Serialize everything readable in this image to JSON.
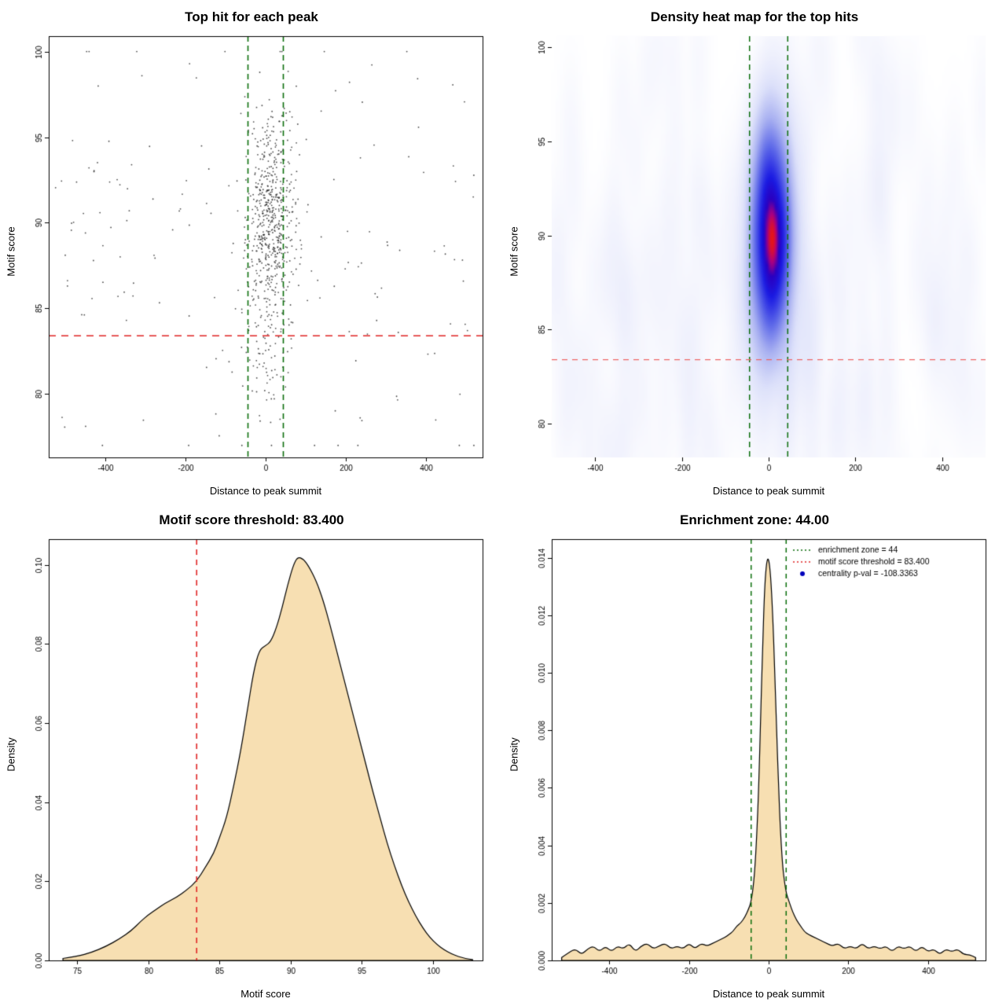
{
  "page": {
    "background": "#ffffff"
  },
  "colors": {
    "red": "#e02424",
    "red_light": "#ee6666",
    "green": "#0b6e0b",
    "wheat": "#f7dfb2",
    "point": "#222222",
    "legend_blue": "#0000bb",
    "axis": "#000000"
  },
  "chart_data": [
    {
      "type": "scatter",
      "title": "Top hit for each peak",
      "xlabel": "Distance to peak summit",
      "ylabel": "Motif score",
      "xlim": [
        -540,
        540
      ],
      "ylim": [
        76.3,
        100.9
      ],
      "xticks": [
        -400,
        -200,
        0,
        200,
        400
      ],
      "xtick_labels": [
        "-400",
        "-200",
        "0",
        "200",
        "400"
      ],
      "yticks": [
        80,
        85,
        90,
        95,
        100
      ],
      "ytick_labels": [
        "80",
        "85",
        "90",
        "95",
        "100"
      ],
      "box": true,
      "vlines": [
        {
          "x": -44,
          "color": "green",
          "dash": [
            7,
            5
          ],
          "width": 1.6
        },
        {
          "x": 44,
          "color": "green",
          "dash": [
            7,
            5
          ],
          "width": 1.6
        }
      ],
      "hlines": [
        {
          "y": 83.4,
          "color": "red",
          "dash": [
            9,
            7
          ],
          "width": 1.6
        }
      ],
      "points_spec": {
        "seed": 42,
        "point_alpha": 0.8,
        "radius": 0.9,
        "y_clip": [
          77,
          100
        ],
        "x_clip": [
          -535,
          535
        ],
        "clusters": [
          {
            "n": 430,
            "x_mean": 14,
            "x_sd": 26,
            "y_mean": 90.8,
            "y_sd": 2.7
          },
          {
            "n": 150,
            "x_mean": 10,
            "x_sd": 42,
            "y_mean": 88.6,
            "y_sd": 4.2
          },
          {
            "n": 60,
            "x_mean": 4,
            "x_sd": 30,
            "y_mean": 82.5,
            "y_sd": 2.4
          },
          {
            "n": 175,
            "x_uniform": [
              -530,
              530
            ],
            "y_mean": 88.2,
            "y_sd": 6.4
          }
        ]
      }
    },
    {
      "type": "heatmap",
      "title": "Density heat map for the top hits",
      "xlabel": "Distance to peak summit",
      "ylabel": "Motif score",
      "xlim": [
        -500,
        500
      ],
      "ylim": [
        78.2,
        100.6
      ],
      "xticks": [
        -400,
        -200,
        0,
        200,
        400
      ],
      "xtick_labels": [
        "-400",
        "-200",
        "0",
        "200",
        "400"
      ],
      "yticks": [
        80,
        85,
        90,
        95,
        100
      ],
      "ytick_labels": [
        "80",
        "85",
        "90",
        "95",
        "100"
      ],
      "box": false,
      "vlines": [
        {
          "x": -44,
          "color": "green",
          "dash": [
            7,
            5
          ],
          "width": 1.5
        },
        {
          "x": 44,
          "color": "green",
          "dash": [
            7,
            5
          ],
          "width": 1.5
        }
      ],
      "hlines": [
        {
          "y": 83.4,
          "color": "red_light",
          "dash": [
            7,
            6
          ],
          "width": 1.2
        }
      ],
      "heat_spec": {
        "seed": 7,
        "grid": [
          150,
          150
        ],
        "bw": [
          15,
          2.1
        ],
        "gamma": 0.6,
        "clusters": [
          {
            "n": 420,
            "x_mean": 5,
            "x_sd": 22,
            "y_mean": 90.6,
            "y_sd": 2.6
          },
          {
            "n": 130,
            "x_mean": 5,
            "x_sd": 34,
            "y_mean": 88.8,
            "y_sd": 3.8
          },
          {
            "n": 120,
            "x_uniform": [
              -500,
              500
            ],
            "y_mean": 88,
            "y_sd": 6.2
          },
          {
            "n": 30,
            "x_uniform": [
              -500,
              500
            ],
            "y_mean": 82,
            "y_sd": 3
          }
        ],
        "colormap": [
          [
            0,
            "#ffffff"
          ],
          [
            0.07,
            "#f3f4fd"
          ],
          [
            0.2,
            "#dde1fa"
          ],
          [
            0.38,
            "#a9b1f1"
          ],
          [
            0.58,
            "#5b66e8"
          ],
          [
            0.78,
            "#1a1ae2"
          ],
          [
            0.9,
            "#2a00c0"
          ],
          [
            0.96,
            "#aa0080"
          ],
          [
            1,
            "#e61616"
          ]
        ]
      }
    },
    {
      "type": "area",
      "title": "Motif score threshold: 83.400",
      "xlabel": "Motif score",
      "ylabel": "Density",
      "xlim": [
        73,
        103.5
      ],
      "ylim": [
        0,
        0.1065
      ],
      "xticks": [
        75,
        80,
        85,
        90,
        95,
        100
      ],
      "xtick_labels": [
        "75",
        "80",
        "85",
        "90",
        "95",
        "100"
      ],
      "yticks": [
        0,
        0.02,
        0.04,
        0.06,
        0.08,
        0.1
      ],
      "ytick_labels": [
        "0.00",
        "0.02",
        "0.04",
        "0.06",
        "0.08",
        "0.10"
      ],
      "box": true,
      "vlines": [
        {
          "x": 83.4,
          "color": "red",
          "dash": [
            7,
            6
          ],
          "width": 1.6
        }
      ],
      "hlines": [],
      "fill": "wheat",
      "curve": [
        [
          74,
          0.0005
        ],
        [
          75,
          0.001
        ],
        [
          76,
          0.002
        ],
        [
          77,
          0.0035
        ],
        [
          78,
          0.0055
        ],
        [
          78.8,
          0.0075
        ],
        [
          79.5,
          0.01
        ],
        [
          80,
          0.0115
        ],
        [
          80.6,
          0.013
        ],
        [
          81.2,
          0.0145
        ],
        [
          82,
          0.016
        ],
        [
          82.7,
          0.0178
        ],
        [
          83.4,
          0.02
        ],
        [
          84,
          0.0235
        ],
        [
          84.6,
          0.027
        ],
        [
          85,
          0.031
        ],
        [
          85.5,
          0.036
        ],
        [
          86,
          0.044
        ],
        [
          86.5,
          0.053
        ],
        [
          87,
          0.064
        ],
        [
          87.4,
          0.073
        ],
        [
          87.8,
          0.0785
        ],
        [
          88.2,
          0.0795
        ],
        [
          88.6,
          0.0805
        ],
        [
          89,
          0.084
        ],
        [
          89.4,
          0.089
        ],
        [
          89.8,
          0.095
        ],
        [
          90.2,
          0.1
        ],
        [
          90.5,
          0.102
        ],
        [
          90.9,
          0.1015
        ],
        [
          91.3,
          0.0995
        ],
        [
          91.8,
          0.096
        ],
        [
          92.3,
          0.091
        ],
        [
          92.8,
          0.0845
        ],
        [
          93.3,
          0.0775
        ],
        [
          93.8,
          0.0705
        ],
        [
          94.3,
          0.0635
        ],
        [
          94.8,
          0.0565
        ],
        [
          95.3,
          0.0495
        ],
        [
          95.8,
          0.0425
        ],
        [
          96.3,
          0.036
        ],
        [
          96.8,
          0.0295
        ],
        [
          97.3,
          0.024
        ],
        [
          97.8,
          0.019
        ],
        [
          98.3,
          0.0148
        ],
        [
          98.8,
          0.0112
        ],
        [
          99.3,
          0.0082
        ],
        [
          99.8,
          0.0058
        ],
        [
          100.3,
          0.004
        ],
        [
          100.8,
          0.0027
        ],
        [
          101.3,
          0.0017
        ],
        [
          101.8,
          0.001
        ],
        [
          102.3,
          0.0005
        ],
        [
          102.8,
          0.0002
        ]
      ]
    },
    {
      "type": "area",
      "title": "Enrichment zone: 44.00",
      "xlabel": "Distance to peak summit",
      "ylabel": "Density",
      "xlim": [
        -545,
        545
      ],
      "ylim": [
        0,
        0.01465
      ],
      "xticks": [
        -400,
        -200,
        0,
        200,
        400
      ],
      "xtick_labels": [
        "-400",
        "-200",
        "0",
        "200",
        "400"
      ],
      "yticks": [
        0,
        0.002,
        0.004,
        0.006,
        0.008,
        0.01,
        0.012,
        0.014
      ],
      "ytick_labels": [
        "0.000",
        "0.002",
        "0.004",
        "0.006",
        "0.008",
        "0.010",
        "0.012",
        "0.014"
      ],
      "box": true,
      "vlines": [
        {
          "x": -44,
          "color": "green",
          "dash": [
            6,
            5
          ],
          "width": 1.5
        },
        {
          "x": 44,
          "color": "green",
          "dash": [
            6,
            5
          ],
          "width": 1.5
        }
      ],
      "hlines": [],
      "fill": "wheat",
      "curve": [
        [
          -520,
          0.0001
        ],
        [
          -500,
          0.0003
        ],
        [
          -485,
          0.0004
        ],
        [
          -470,
          0.0002
        ],
        [
          -455,
          0.0004
        ],
        [
          -440,
          0.0005
        ],
        [
          -425,
          0.0003
        ],
        [
          -410,
          0.0005
        ],
        [
          -395,
          0.0003
        ],
        [
          -380,
          0.0005
        ],
        [
          -365,
          0.0004
        ],
        [
          -350,
          0.0006
        ],
        [
          -335,
          0.0003
        ],
        [
          -320,
          0.0005
        ],
        [
          -305,
          0.0006
        ],
        [
          -290,
          0.0004
        ],
        [
          -275,
          0.0005
        ],
        [
          -260,
          0.0006
        ],
        [
          -245,
          0.0004
        ],
        [
          -230,
          0.0005
        ],
        [
          -215,
          0.0004
        ],
        [
          -200,
          0.0006
        ],
        [
          -185,
          0.0004
        ],
        [
          -170,
          0.0006
        ],
        [
          -155,
          0.0005
        ],
        [
          -140,
          0.0006
        ],
        [
          -125,
          0.0007
        ],
        [
          -110,
          0.0008
        ],
        [
          -100,
          0.0009
        ],
        [
          -90,
          0.001
        ],
        [
          -80,
          0.0012
        ],
        [
          -70,
          0.0013
        ],
        [
          -60,
          0.0015
        ],
        [
          -50,
          0.0018
        ],
        [
          -45,
          0.002
        ],
        [
          -40,
          0.0024
        ],
        [
          -35,
          0.0031
        ],
        [
          -30,
          0.0043
        ],
        [
          -25,
          0.006
        ],
        [
          -20,
          0.0085
        ],
        [
          -15,
          0.011
        ],
        [
          -10,
          0.013
        ],
        [
          -5,
          0.0139
        ],
        [
          0,
          0.014
        ],
        [
          5,
          0.0134
        ],
        [
          10,
          0.0121
        ],
        [
          15,
          0.0102
        ],
        [
          20,
          0.008
        ],
        [
          25,
          0.006
        ],
        [
          30,
          0.0044
        ],
        [
          35,
          0.0033
        ],
        [
          40,
          0.0027
        ],
        [
          45,
          0.0023
        ],
        [
          50,
          0.0021
        ],
        [
          55,
          0.0019
        ],
        [
          60,
          0.0017
        ],
        [
          70,
          0.0014
        ],
        [
          80,
          0.0012
        ],
        [
          90,
          0.001
        ],
        [
          100,
          0.0009
        ],
        [
          115,
          0.0008
        ],
        [
          130,
          0.0007
        ],
        [
          145,
          0.0006
        ],
        [
          160,
          0.0005
        ],
        [
          175,
          0.0006
        ],
        [
          190,
          0.0004
        ],
        [
          205,
          0.0005
        ],
        [
          220,
          0.0004
        ],
        [
          235,
          0.0006
        ],
        [
          250,
          0.0004
        ],
        [
          265,
          0.0005
        ],
        [
          280,
          0.0004
        ],
        [
          295,
          0.0005
        ],
        [
          310,
          0.0003
        ],
        [
          325,
          0.0005
        ],
        [
          340,
          0.0004
        ],
        [
          355,
          0.0005
        ],
        [
          370,
          0.0003
        ],
        [
          385,
          0.0005
        ],
        [
          400,
          0.0003
        ],
        [
          415,
          0.0004
        ],
        [
          430,
          0.0002
        ],
        [
          445,
          0.0004
        ],
        [
          460,
          0.0003
        ],
        [
          475,
          0.0004
        ],
        [
          490,
          0.0002
        ],
        [
          505,
          0.0002
        ],
        [
          520,
          0.0001
        ]
      ],
      "legend": {
        "items": [
          {
            "label": "enrichment zone = 44",
            "type": "line",
            "color": "green"
          },
          {
            "label": "motif score threshold = 83.400",
            "type": "line",
            "color": "red"
          },
          {
            "label": "centrality p-val = -108.3363",
            "type": "point",
            "color": "legend_blue"
          }
        ]
      }
    }
  ]
}
